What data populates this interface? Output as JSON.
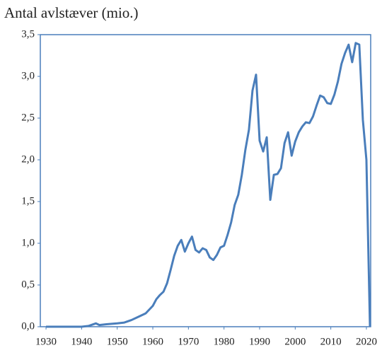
{
  "chart_data": {
    "type": "line",
    "title": "Antal avlstæver (mio.)",
    "x": [
      1930,
      1935,
      1940,
      1942,
      1944,
      1945,
      1947,
      1950,
      1952,
      1954,
      1956,
      1958,
      1960,
      1961,
      1962,
      1963,
      1964,
      1965,
      1966,
      1967,
      1968,
      1969,
      1970,
      1971,
      1972,
      1973,
      1974,
      1975,
      1976,
      1977,
      1978,
      1979,
      1980,
      1981,
      1982,
      1983,
      1984,
      1985,
      1986,
      1987,
      1988,
      1989,
      1990,
      1991,
      1992,
      1993,
      1994,
      1995,
      1996,
      1997,
      1998,
      1999,
      2000,
      2001,
      2002,
      2003,
      2004,
      2005,
      2006,
      2007,
      2008,
      2009,
      2010,
      2011,
      2012,
      2013,
      2014,
      2015,
      2016,
      2017,
      2018,
      2019,
      2020,
      2021
    ],
    "series": [
      {
        "name": "Antal avlstæver",
        "color": "#4a7ebb",
        "values": [
          0,
          0,
          0,
          0.01,
          0.04,
          0.02,
          0.03,
          0.04,
          0.05,
          0.08,
          0.12,
          0.16,
          0.25,
          0.33,
          0.38,
          0.42,
          0.52,
          0.68,
          0.85,
          0.97,
          1.04,
          0.9,
          1.0,
          1.08,
          0.92,
          0.89,
          0.94,
          0.92,
          0.83,
          0.8,
          0.86,
          0.95,
          0.97,
          1.1,
          1.25,
          1.46,
          1.58,
          1.82,
          2.12,
          2.36,
          2.83,
          3.02,
          2.23,
          2.1,
          2.27,
          1.52,
          1.82,
          1.83,
          1.9,
          2.2,
          2.33,
          2.05,
          2.22,
          2.33,
          2.4,
          2.45,
          2.44,
          2.52,
          2.65,
          2.77,
          2.75,
          2.68,
          2.67,
          2.78,
          2.94,
          3.15,
          3.28,
          3.38,
          3.17,
          3.4,
          3.38,
          2.48,
          2.0,
          0.0
        ]
      }
    ],
    "xlim": [
      1928.4,
      2021.2
    ],
    "ylim": [
      0,
      3.5
    ],
    "xticks": [
      1930,
      1940,
      1950,
      1960,
      1970,
      1980,
      1990,
      2000,
      2010,
      2020
    ],
    "yticks": [
      {
        "value": 0,
        "label": "0,0"
      },
      {
        "value": 0.5,
        "label": "0,5"
      },
      {
        "value": 1,
        "label": "1,0"
      },
      {
        "value": 1.5,
        "label": "1,5"
      },
      {
        "value": 2,
        "label": "2,0"
      },
      {
        "value": 2.5,
        "label": "2,5"
      },
      {
        "value": 3,
        "label": "3,0"
      },
      {
        "value": 3.5,
        "label": "3,5"
      }
    ]
  }
}
